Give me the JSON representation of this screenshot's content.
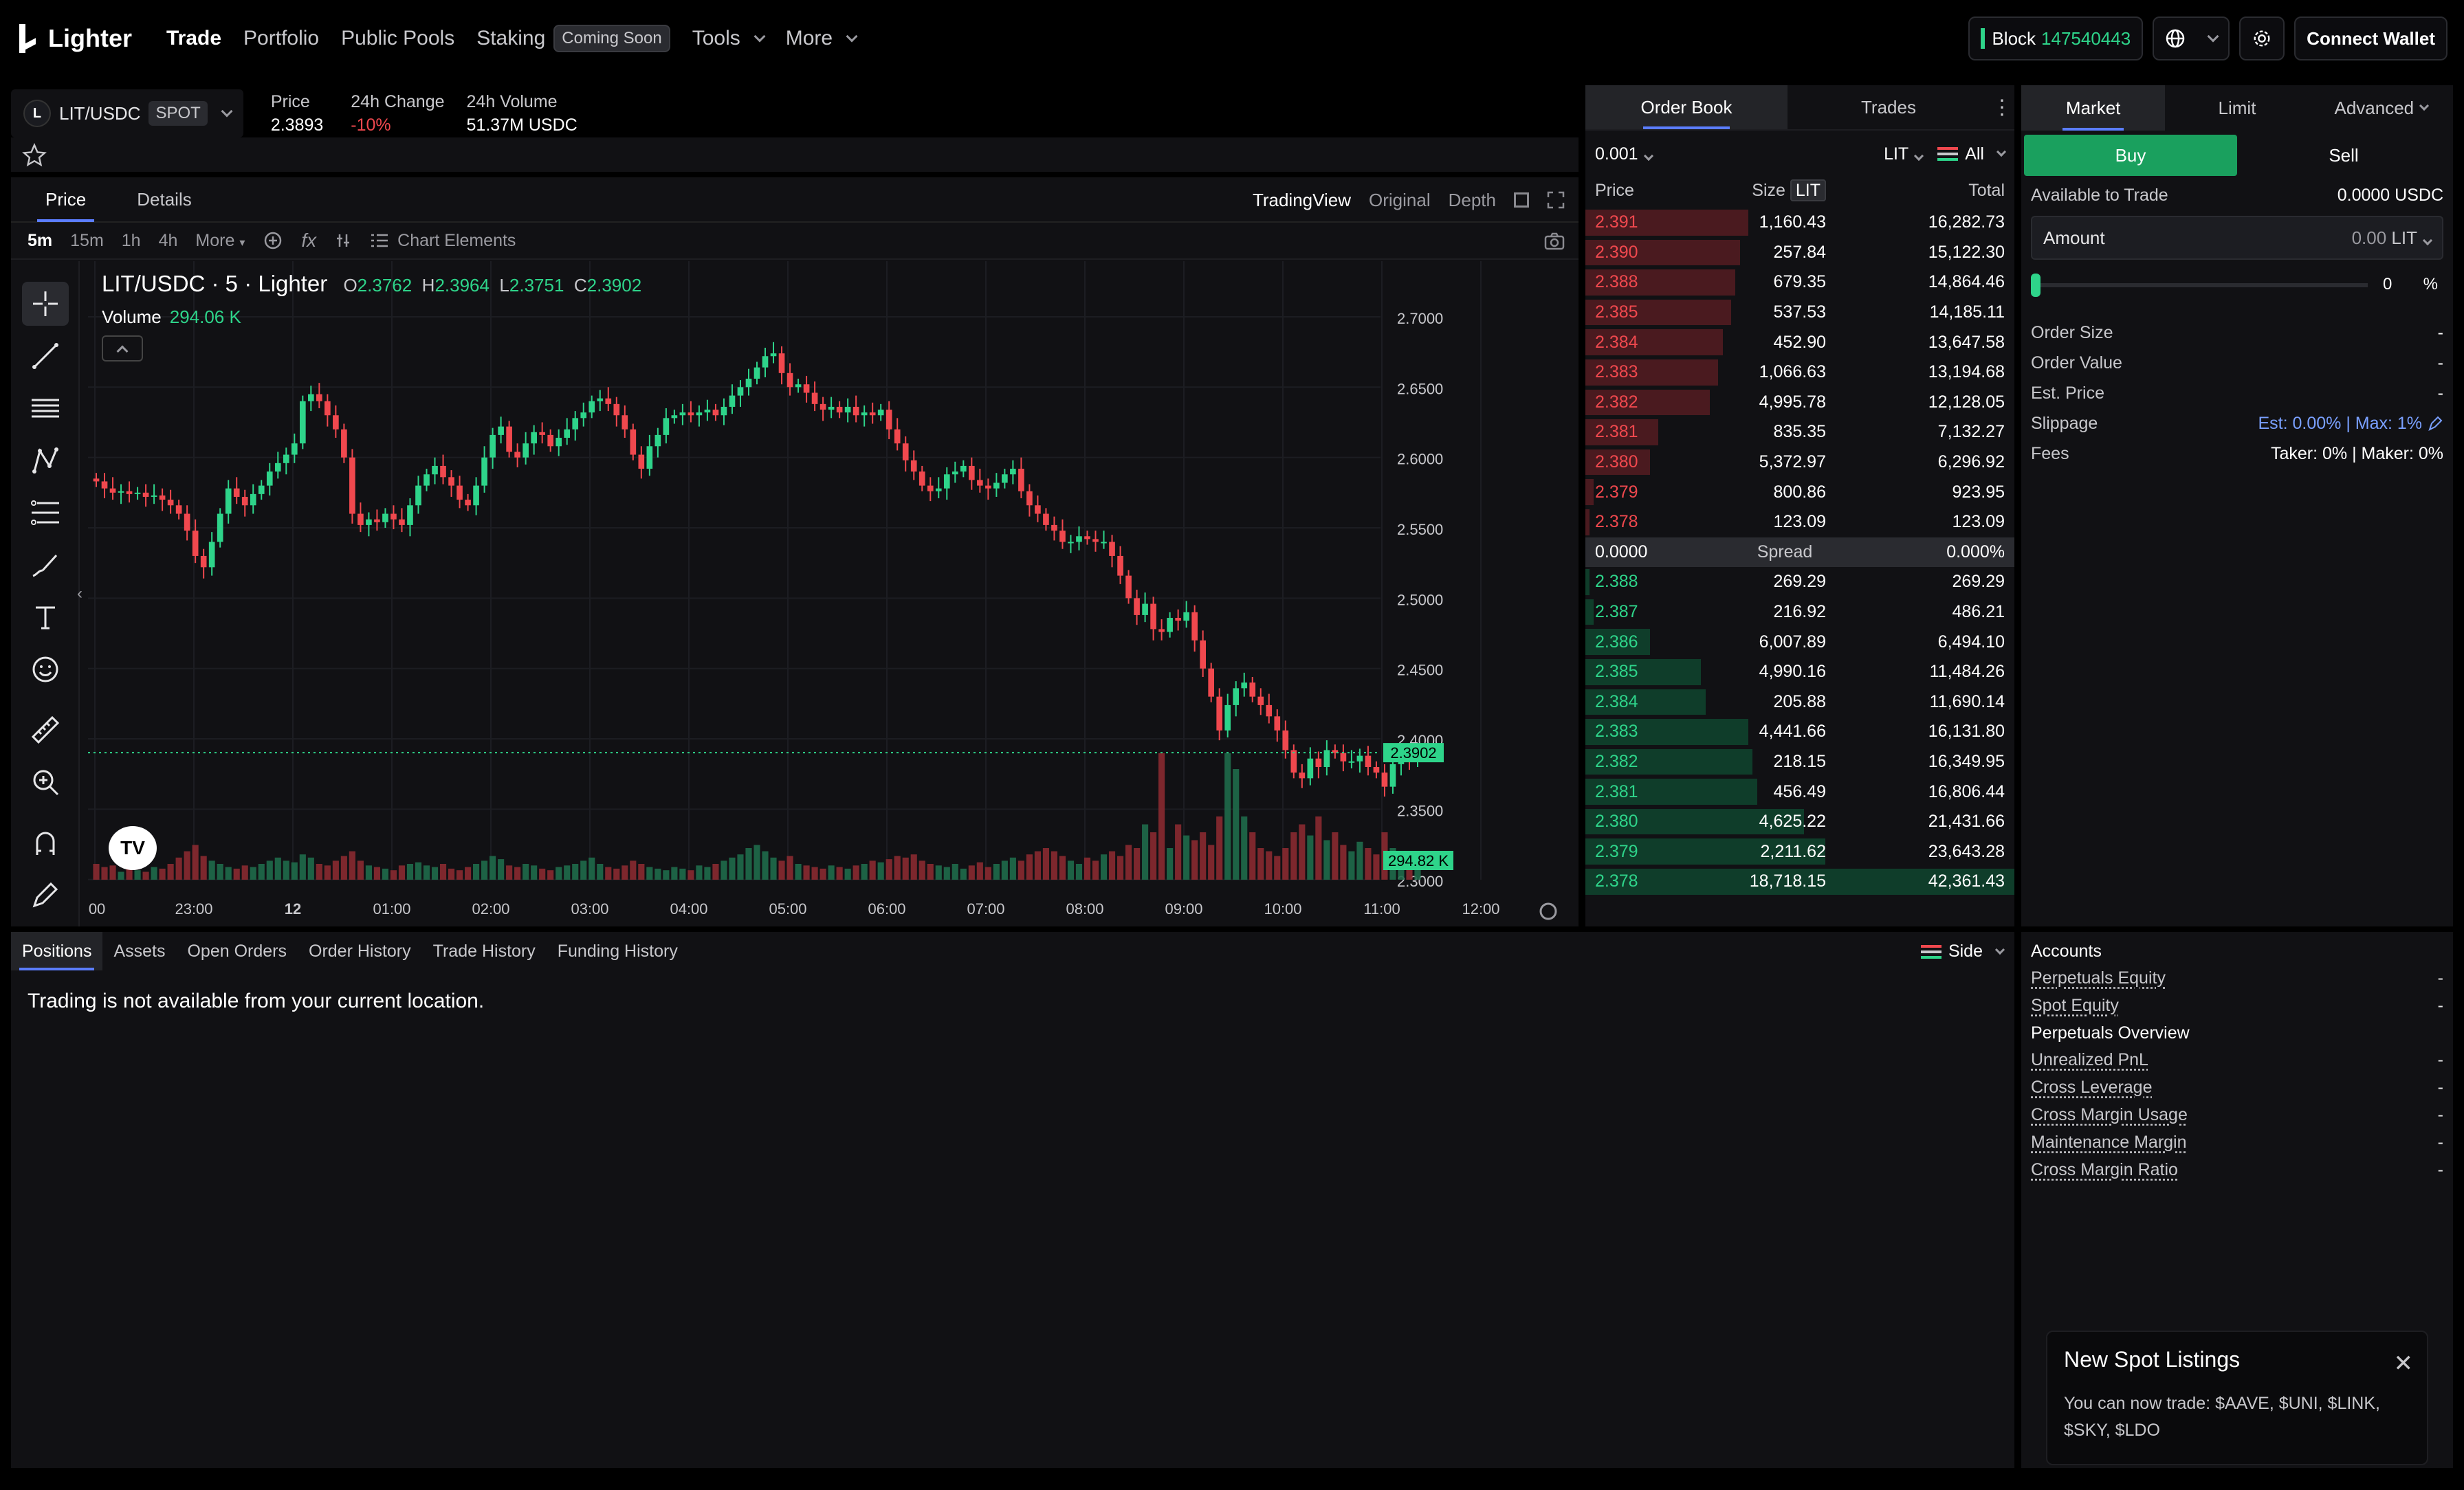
{
  "nav": {
    "logo": "Lighter",
    "items": [
      "Trade",
      "Portfolio",
      "Public Pools",
      "Staking"
    ],
    "staking_badge": "Coming Soon",
    "tools": "Tools",
    "more": "More",
    "block_label": "Block",
    "block_number": "147540443",
    "connect": "Connect Wallet"
  },
  "market": {
    "pair": "LIT/USDC",
    "type": "SPOT",
    "price_label": "Price",
    "price": "2.3893",
    "change_label": "24h Change",
    "change": "-10%",
    "volume_label": "24h Volume",
    "volume": "51.37M USDC"
  },
  "chart_tabs": {
    "price": "Price",
    "details": "Details",
    "modes": [
      "TradingView",
      "Original",
      "Depth"
    ]
  },
  "timeframes": [
    "5m",
    "15m",
    "1h",
    "4h",
    "More"
  ],
  "chart_elements": "Chart Elements",
  "chart_legend": {
    "title": "LIT/USDC · 5 · Lighter",
    "o": "2.3762",
    "h": "2.3964",
    "l": "2.3751",
    "c": "2.3902",
    "volume_label": "Volume",
    "volume": "294.06 K",
    "price_tag": "2.3902",
    "volume_tag": "294.82 K"
  },
  "chart_data": {
    "type": "candlestick",
    "y_ticks": [
      2.3,
      2.35,
      2.4,
      2.45,
      2.5,
      2.55,
      2.6,
      2.65,
      2.7
    ],
    "y_tick_labels": [
      "2.3000",
      "2.3500",
      "2.4000",
      "2.4500",
      "2.5000",
      "2.5500",
      "2.6000",
      "2.6500",
      "2.7000"
    ],
    "ylim": [
      2.295,
      2.72
    ],
    "x_tick_labels": [
      ":00",
      "23:00",
      "12",
      "01:00",
      "02:00",
      "03:00",
      "04:00",
      "05:00",
      "06:00",
      "07:00",
      "08:00",
      "09:00",
      "10:00",
      "11:00",
      "12:00"
    ],
    "last_price": 2.3902,
    "close": [
      2.583,
      2.578,
      2.575,
      2.576,
      2.574,
      2.575,
      2.572,
      2.573,
      2.57,
      2.566,
      2.56,
      2.548,
      2.53,
      2.522,
      2.54,
      2.56,
      2.578,
      2.572,
      2.566,
      2.574,
      2.58,
      2.59,
      2.596,
      2.602,
      2.61,
      2.64,
      2.645,
      2.64,
      2.63,
      2.62,
      2.6,
      2.56,
      2.552,
      2.556,
      2.554,
      2.56,
      2.556,
      2.552,
      2.566,
      2.58,
      2.588,
      2.594,
      2.586,
      2.58,
      2.57,
      2.566,
      2.58,
      2.6,
      2.616,
      2.622,
      2.604,
      2.6,
      2.61,
      2.618,
      2.616,
      2.608,
      2.614,
      2.62,
      2.628,
      2.632,
      2.64,
      2.642,
      2.638,
      2.63,
      2.62,
      2.602,
      2.592,
      2.608,
      2.616,
      2.628,
      2.63,
      2.632,
      2.63,
      2.632,
      2.634,
      2.63,
      2.636,
      2.644,
      2.65,
      2.656,
      2.664,
      2.672,
      2.674,
      2.66,
      2.65,
      2.652,
      2.646,
      2.638,
      2.634,
      2.636,
      2.632,
      2.636,
      2.63,
      2.632,
      2.63,
      2.634,
      2.62,
      2.61,
      2.598,
      2.59,
      2.58,
      2.576,
      2.578,
      2.588,
      2.59,
      2.594,
      2.584,
      2.58,
      2.578,
      2.582,
      2.588,
      2.592,
      2.576,
      2.566,
      2.56,
      2.552,
      2.548,
      2.54,
      2.54,
      2.544,
      2.542,
      2.54,
      2.54,
      2.53,
      2.516,
      2.5,
      2.488,
      2.496,
      2.478,
      2.476,
      2.486,
      2.484,
      2.49,
      2.47,
      2.45,
      2.43,
      2.406,
      2.424,
      2.436,
      2.44,
      2.43,
      2.424,
      2.416,
      2.406,
      2.392,
      2.376,
      2.372,
      2.386,
      2.38,
      2.392,
      2.39,
      2.384,
      2.384,
      2.388,
      2.38,
      2.376,
      2.366,
      2.382,
      2.386,
      2.384,
      2.39
    ],
    "volume_rel": [
      0.1,
      0.08,
      0.09,
      0.05,
      0.07,
      0.06,
      0.05,
      0.08,
      0.07,
      0.1,
      0.14,
      0.18,
      0.22,
      0.15,
      0.12,
      0.1,
      0.08,
      0.07,
      0.09,
      0.08,
      0.1,
      0.12,
      0.14,
      0.12,
      0.11,
      0.16,
      0.14,
      0.1,
      0.09,
      0.12,
      0.15,
      0.18,
      0.12,
      0.09,
      0.08,
      0.07,
      0.06,
      0.09,
      0.1,
      0.11,
      0.09,
      0.08,
      0.1,
      0.07,
      0.06,
      0.08,
      0.1,
      0.12,
      0.15,
      0.13,
      0.09,
      0.08,
      0.1,
      0.09,
      0.07,
      0.06,
      0.08,
      0.09,
      0.1,
      0.12,
      0.14,
      0.1,
      0.08,
      0.07,
      0.09,
      0.12,
      0.1,
      0.08,
      0.07,
      0.06,
      0.08,
      0.07,
      0.06,
      0.09,
      0.08,
      0.1,
      0.12,
      0.14,
      0.16,
      0.2,
      0.22,
      0.18,
      0.14,
      0.12,
      0.15,
      0.1,
      0.09,
      0.08,
      0.07,
      0.09,
      0.08,
      0.07,
      0.09,
      0.1,
      0.12,
      0.11,
      0.13,
      0.15,
      0.14,
      0.16,
      0.12,
      0.1,
      0.09,
      0.08,
      0.1,
      0.07,
      0.09,
      0.11,
      0.08,
      0.1,
      0.12,
      0.14,
      0.12,
      0.16,
      0.18,
      0.2,
      0.18,
      0.15,
      0.12,
      0.1,
      0.14,
      0.12,
      0.16,
      0.18,
      0.15,
      0.22,
      0.2,
      0.35,
      0.3,
      0.8,
      0.2,
      0.35,
      0.28,
      0.25,
      0.3,
      0.22,
      0.4,
      0.8,
      0.7,
      0.4,
      0.3,
      0.2,
      0.18,
      0.15,
      0.2,
      0.3,
      0.35,
      0.28,
      0.4,
      0.25,
      0.3,
      0.22,
      0.18,
      0.24,
      0.2,
      0.16,
      0.3,
      0.2,
      0.14,
      0.12,
      0.16
    ]
  },
  "orderbook": {
    "tabs": [
      "Order Book",
      "Trades"
    ],
    "tick": "0.001",
    "unit": "LIT",
    "filter": "All",
    "headers": {
      "price": "Price",
      "size": "Size",
      "size_unit": "LIT",
      "total": "Total"
    },
    "asks": [
      {
        "price": "2.391",
        "size": "1,160.43",
        "total": "16,282.73",
        "depth": 0.38
      },
      {
        "price": "2.390",
        "size": "257.84",
        "total": "15,122.30",
        "depth": 0.36
      },
      {
        "price": "2.388",
        "size": "679.35",
        "total": "14,864.46",
        "depth": 0.35
      },
      {
        "price": "2.385",
        "size": "537.53",
        "total": "14,185.11",
        "depth": 0.34
      },
      {
        "price": "2.384",
        "size": "452.90",
        "total": "13,647.58",
        "depth": 0.32
      },
      {
        "price": "2.383",
        "size": "1,066.63",
        "total": "13,194.68",
        "depth": 0.31
      },
      {
        "price": "2.382",
        "size": "4,995.78",
        "total": "12,128.05",
        "depth": 0.29
      },
      {
        "price": "2.381",
        "size": "835.35",
        "total": "7,132.27",
        "depth": 0.17
      },
      {
        "price": "2.380",
        "size": "5,372.97",
        "total": "6,296.92",
        "depth": 0.15
      },
      {
        "price": "2.379",
        "size": "800.86",
        "total": "923.95",
        "depth": 0.02
      },
      {
        "price": "2.378",
        "size": "123.09",
        "total": "123.09",
        "depth": 0.01
      }
    ],
    "spread": {
      "price": "0.0000",
      "label": "Spread",
      "pct": "0.000%"
    },
    "bids": [
      {
        "price": "2.388",
        "size": "269.29",
        "total": "269.29",
        "depth": 0.01
      },
      {
        "price": "2.387",
        "size": "216.92",
        "total": "486.21",
        "depth": 0.02
      },
      {
        "price": "2.386",
        "size": "6,007.89",
        "total": "6,494.10",
        "depth": 0.15
      },
      {
        "price": "2.385",
        "size": "4,990.16",
        "total": "11,484.26",
        "depth": 0.27
      },
      {
        "price": "2.384",
        "size": "205.88",
        "total": "11,690.14",
        "depth": 0.28
      },
      {
        "price": "2.383",
        "size": "4,441.66",
        "total": "16,131.80",
        "depth": 0.38
      },
      {
        "price": "2.382",
        "size": "218.15",
        "total": "16,349.95",
        "depth": 0.39
      },
      {
        "price": "2.381",
        "size": "456.49",
        "total": "16,806.44",
        "depth": 0.4
      },
      {
        "price": "2.380",
        "size": "4,625.22",
        "total": "21,431.66",
        "depth": 0.51
      },
      {
        "price": "2.379",
        "size": "2,211.62",
        "total": "23,643.28",
        "depth": 0.56
      },
      {
        "price": "2.378",
        "size": "18,718.15",
        "total": "42,361.43",
        "depth": 1.0
      }
    ]
  },
  "order_form": {
    "types": [
      "Market",
      "Limit",
      "Advanced"
    ],
    "buy": "Buy",
    "sell": "Sell",
    "available_label": "Available to Trade",
    "available": "0.0000 USDC",
    "amount_label": "Amount",
    "amount": "0.00",
    "amount_unit": "LIT",
    "pct_value": "0",
    "pct_sign": "%",
    "order_size_label": "Order Size",
    "order_size": "-",
    "order_value_label": "Order Value",
    "order_value": "-",
    "est_price_label": "Est. Price",
    "est_price": "-",
    "slippage_label": "Slippage",
    "slippage": "Est: 0.00% | Max: 1%",
    "fees_label": "Fees",
    "fees": "Taker: 0% | Maker: 0%"
  },
  "bottom": {
    "tabs": [
      "Positions",
      "Assets",
      "Open Orders",
      "Order History",
      "Trade History",
      "Funding History"
    ],
    "side": "Side",
    "message": "Trading is not available from your current location."
  },
  "accounts": {
    "title": "Accounts",
    "rows1": [
      {
        "label": "Perpetuals Equity",
        "value": "-"
      },
      {
        "label": "Spot Equity",
        "value": "-"
      }
    ],
    "overview_title": "Perpetuals Overview",
    "rows2": [
      {
        "label": "Unrealized PnL",
        "value": "-"
      },
      {
        "label": "Cross Leverage",
        "value": "-"
      },
      {
        "label": "Cross Margin Usage",
        "value": "-"
      },
      {
        "label": "Maintenance Margin",
        "value": "-"
      },
      {
        "label": "Cross Margin Ratio",
        "value": "-"
      }
    ]
  },
  "toast": {
    "title": "New Spot Listings",
    "body": "You can now trade: $AAVE, $UNI, $LINK, $SKY, $LDO"
  },
  "colors": {
    "up": "#2ed48a",
    "down": "#f0484e",
    "accent": "#5b7dff",
    "buy": "#1aa05e"
  }
}
